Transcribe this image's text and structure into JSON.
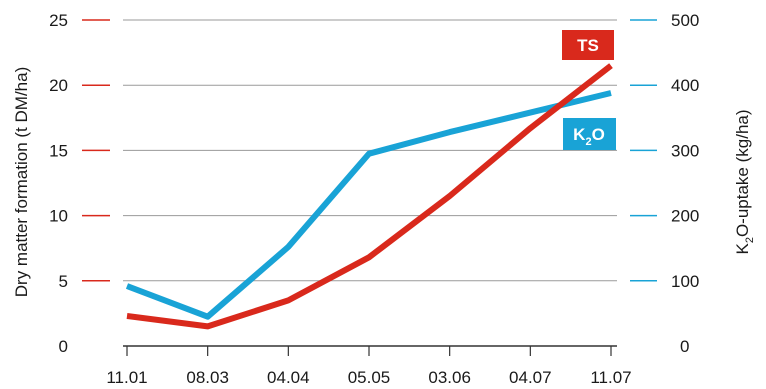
{
  "chart_data": {
    "type": "line",
    "categories": [
      "11.01",
      "08.03",
      "04.04",
      "05.05",
      "03.06",
      "04.07",
      "11.07"
    ],
    "y_left": {
      "label": "Dry matter formation (t DM/ha)",
      "ticks": [
        "0",
        "5",
        "10",
        "15",
        "20",
        "25"
      ],
      "range": [
        0,
        25
      ]
    },
    "y_right": {
      "label_parts": [
        "K",
        "2",
        "O-uptake (kg/ha)"
      ],
      "ticks": [
        "0",
        "100",
        "200",
        "300",
        "400",
        "500"
      ],
      "range": [
        0,
        500
      ]
    },
    "series": [
      {
        "name": "TS",
        "axis": "left",
        "color": "#d9291c",
        "values": [
          2.3,
          1.5,
          3.5,
          6.8,
          11.5,
          16.7,
          21.5
        ]
      },
      {
        "name_parts": [
          "K",
          "2",
          "O"
        ],
        "axis": "right",
        "color": "#19a3d6",
        "values": [
          92,
          45,
          152,
          295,
          328,
          358,
          388
        ]
      }
    ],
    "grid": true,
    "legend": "inline labels near line ends"
  }
}
